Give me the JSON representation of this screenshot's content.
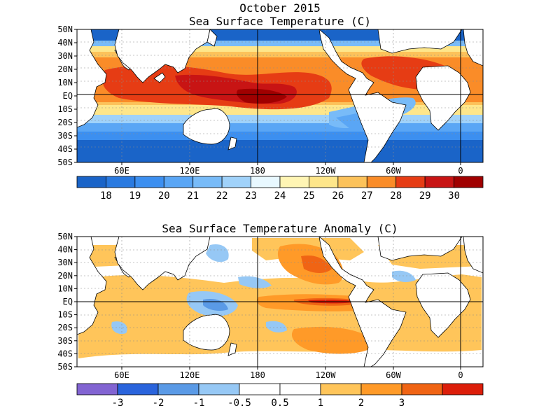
{
  "header": {
    "line1": "October 2015",
    "panel1_title": "Sea Surface Temperature (C)",
    "panel2_title": "Sea Surface Temperature Anomaly (C)"
  },
  "axes": {
    "lat_labels": [
      "50N",
      "40N",
      "30N",
      "20N",
      "10N",
      "EQ",
      "10S",
      "20S",
      "30S",
      "40S",
      "50S"
    ],
    "lon_labels": [
      "60E",
      "120E",
      "180",
      "120W",
      "60W",
      "0"
    ]
  },
  "sst_colorbar": {
    "colors": [
      "#1a64c8",
      "#2a7ae0",
      "#3c8ff0",
      "#5aa6f5",
      "#78bbf8",
      "#a0d2fa",
      "#e8f8ff",
      "#fff5b4",
      "#fee68a",
      "#fcc25a",
      "#fa8c28",
      "#e63c14",
      "#c81414",
      "#a00000"
    ],
    "labels": [
      "18",
      "19",
      "20",
      "21",
      "22",
      "23",
      "24",
      "25",
      "26",
      "27",
      "28",
      "29",
      "30"
    ]
  },
  "anom_colorbar": {
    "colors": [
      "#8264d2",
      "#2a64dc",
      "#5a9ae6",
      "#96c8f5",
      "#ffffff",
      "#ffffff",
      "#ffc55a",
      "#ff9a28",
      "#f06414",
      "#dc1e0a"
    ],
    "labels": [
      "-3",
      "-2",
      "-1",
      "-0.5",
      "0.5",
      "1",
      "2",
      "3"
    ]
  },
  "map_colors": {
    "land": "#ffffff",
    "coast": "#000000",
    "grid": "#8c8c8c"
  }
}
